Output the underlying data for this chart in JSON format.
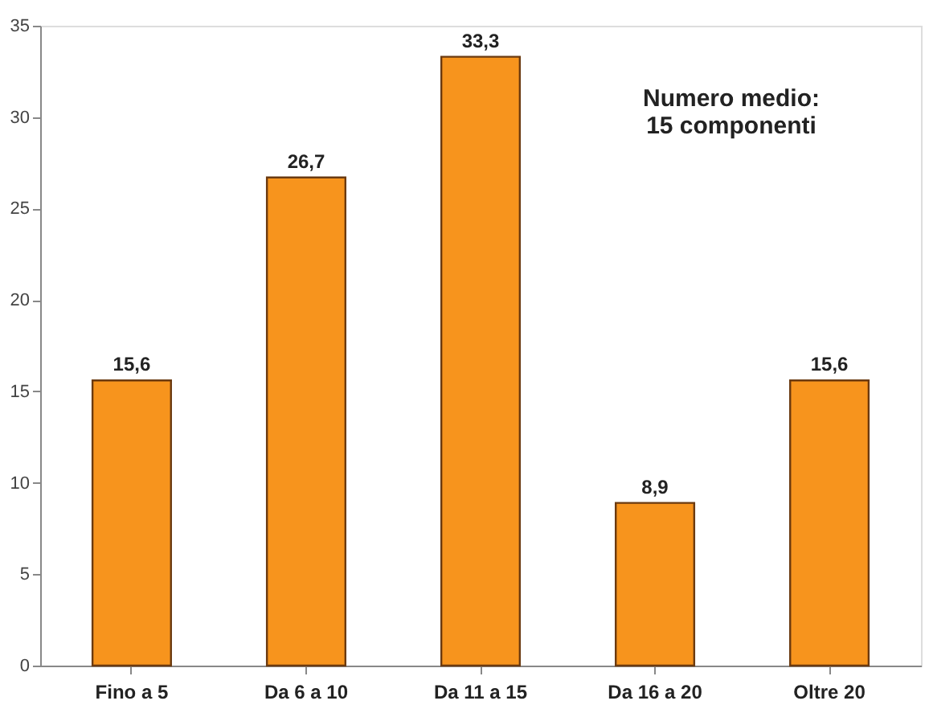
{
  "chart_data": {
    "type": "bar",
    "categories": [
      "Fino a 5",
      "Da 6 a 10",
      "Da 11 a 15",
      "Da 16 a 20",
      "Oltre 20"
    ],
    "values": [
      15.6,
      26.7,
      33.3,
      8.9,
      15.6
    ],
    "value_labels": [
      "15,6",
      "26,7",
      "33,3",
      "8,9",
      "15,6"
    ],
    "color": "#f7941d",
    "ylim": [
      0,
      35
    ],
    "yticks": [
      0,
      5,
      10,
      15,
      20,
      25,
      30,
      35
    ],
    "grid": false,
    "annotations": [
      "Numero medio:\n15 componenti"
    ]
  }
}
